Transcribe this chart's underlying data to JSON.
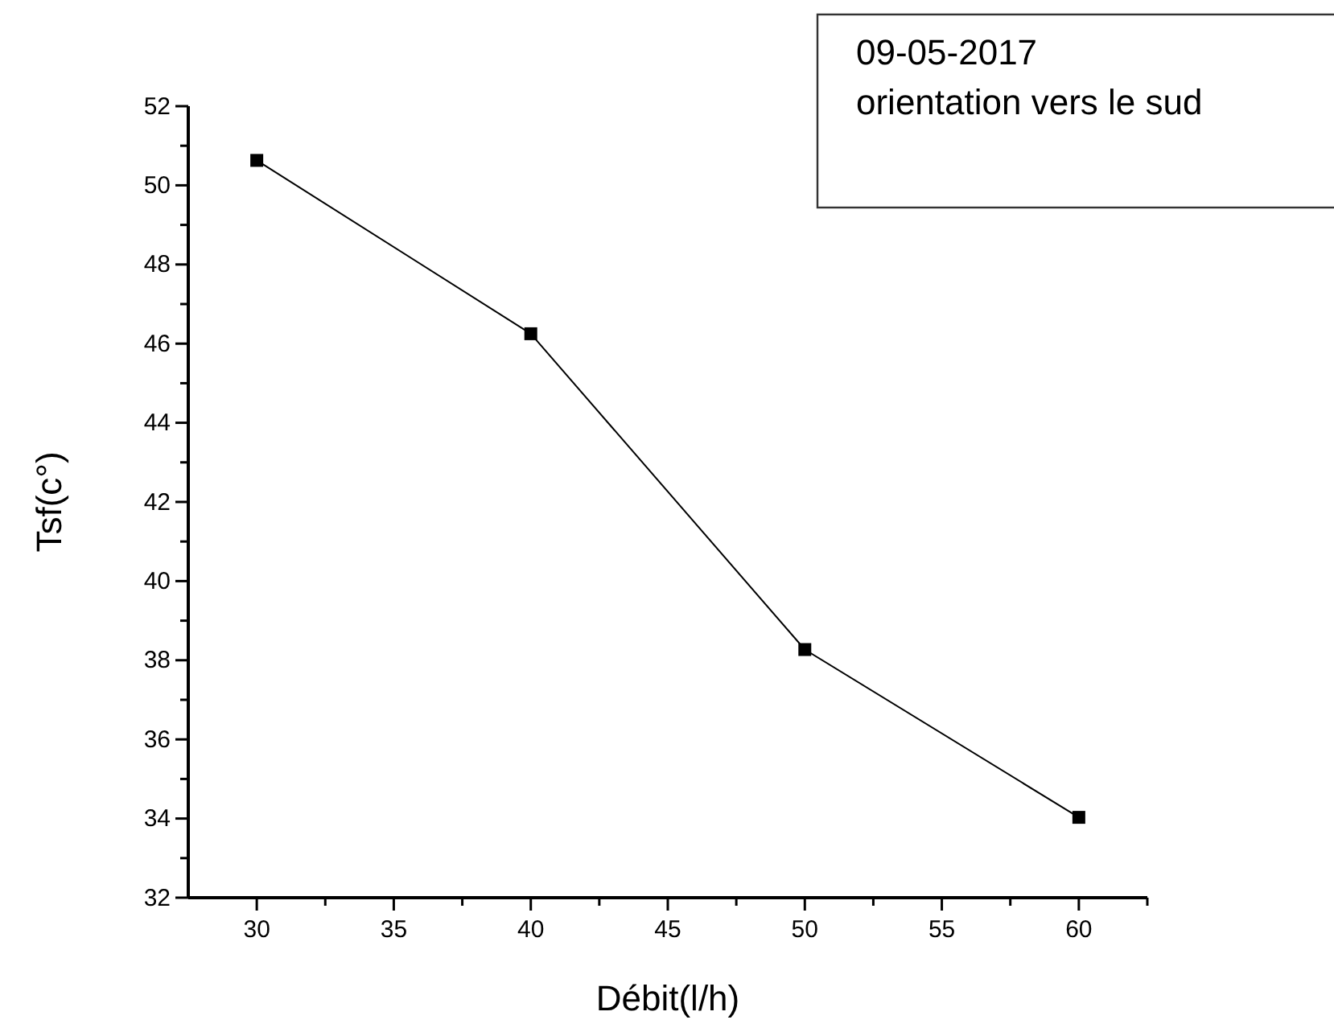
{
  "chart_data": {
    "type": "line",
    "xlabel": "Débit(l/h)",
    "ylabel": "Tsf(c°)",
    "annotations": [
      "09-05-2017\norientation vers le sud"
    ],
    "x": [
      30,
      40,
      50,
      60
    ],
    "series": [
      {
        "color": "#000000",
        "values": [
          50.63,
          46.25,
          38.27,
          34.03
        ]
      }
    ],
    "xlim": [
      27.5,
      62.5
    ],
    "xticks": [
      30,
      {
        "value": 32.5,
        "label": null
      },
      35,
      {
        "value": 37.5,
        "label": null
      },
      40,
      {
        "value": 42.5,
        "label": null
      },
      45,
      {
        "value": 47.5,
        "label": null
      },
      50,
      {
        "value": 52.5,
        "label": null
      },
      55,
      {
        "value": 57.5,
        "label": null
      },
      60,
      {
        "value": 62.5,
        "label": null
      }
    ],
    "ylim": [
      32,
      52
    ],
    "yticks": [
      32,
      {
        "value": 33,
        "label": null
      },
      34,
      {
        "value": 35,
        "label": null
      },
      36,
      {
        "value": 37,
        "label": null
      },
      38,
      {
        "value": 39,
        "label": null
      },
      40,
      {
        "value": 41,
        "label": null
      },
      42,
      {
        "value": 43,
        "label": null
      },
      44,
      {
        "value": 45,
        "label": null
      },
      46,
      {
        "value": 47,
        "label": null
      },
      48,
      {
        "value": 49,
        "label": null
      },
      50,
      {
        "value": 51,
        "label": null
      },
      52
    ],
    "marker": "square",
    "line_style": "solid",
    "grid": false
  }
}
